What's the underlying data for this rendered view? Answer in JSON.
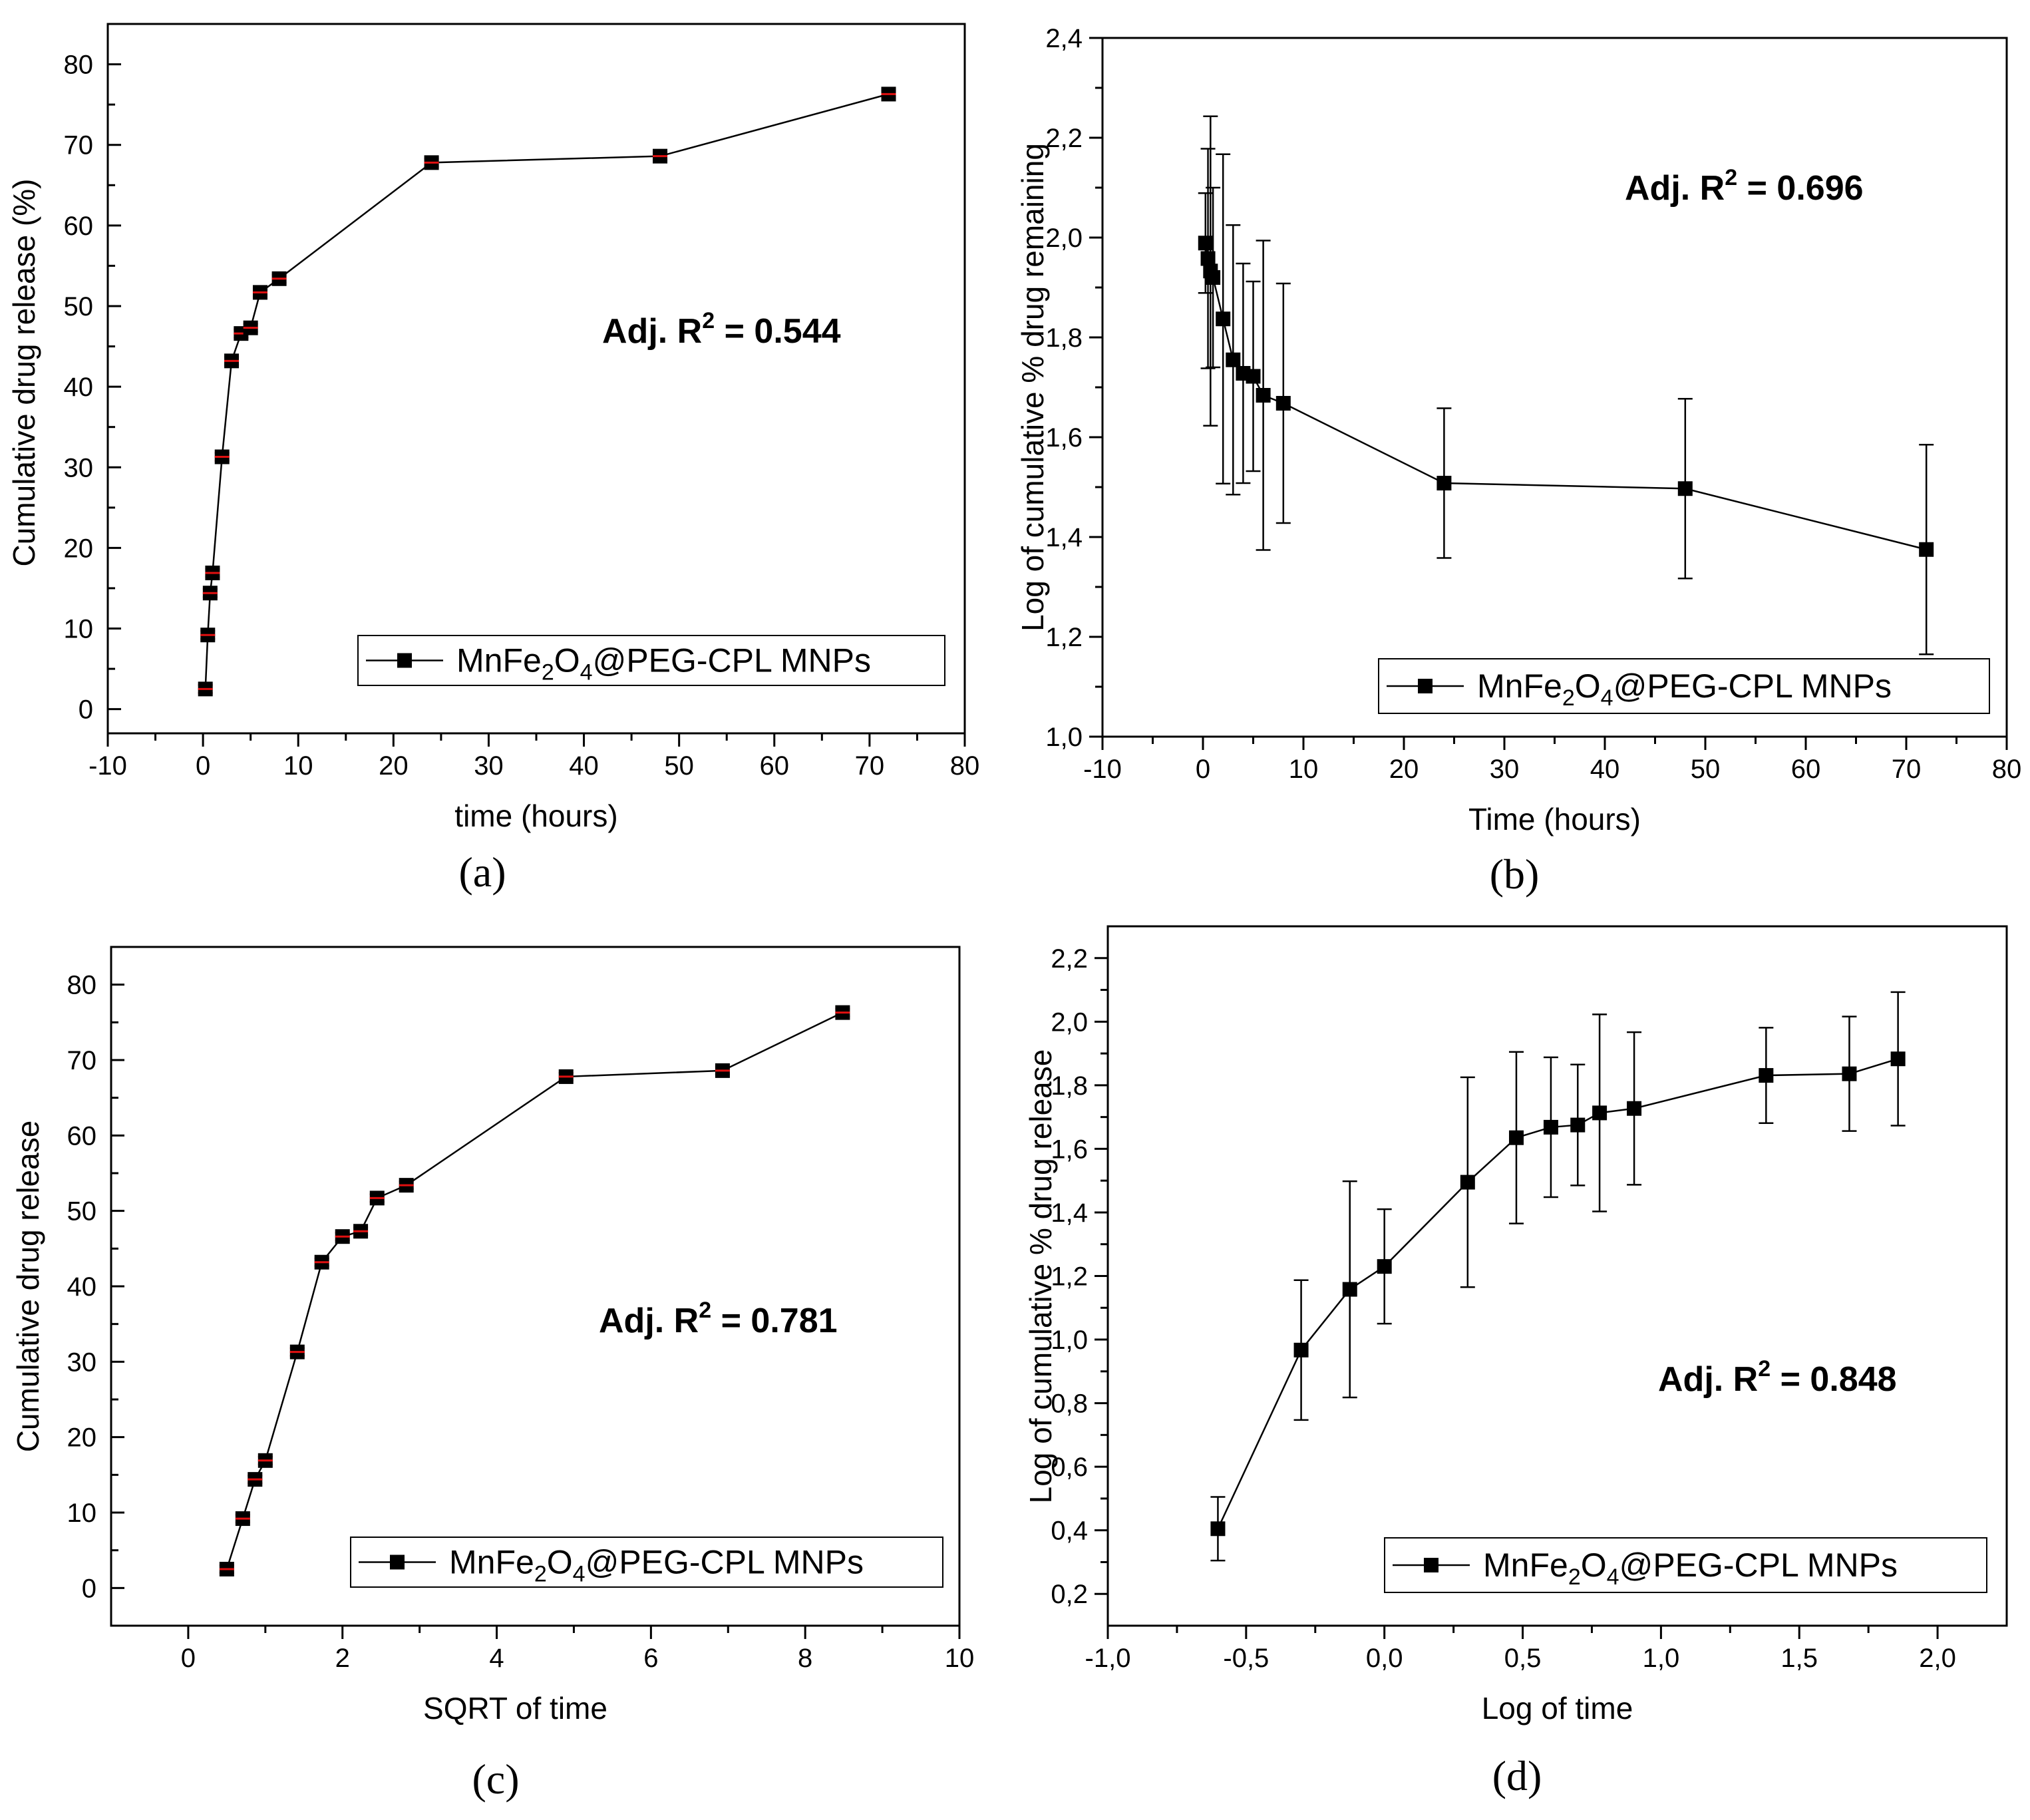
{
  "chart_data": [
    {
      "type": "line",
      "panel_label": "(a)",
      "title": "",
      "xlabel": "time (hours)",
      "ylabel": "Cumulative drug release (%)",
      "xlim": [
        -10,
        80
      ],
      "ylim": [
        -3,
        85
      ],
      "xticks": [
        -10,
        0,
        10,
        20,
        30,
        40,
        50,
        60,
        70,
        80
      ],
      "xtick_labels": [
        "-10",
        "0",
        "10",
        "20",
        "30",
        "40",
        "50",
        "60",
        "70",
        "80"
      ],
      "yticks": [
        0,
        10,
        20,
        30,
        40,
        50,
        60,
        70,
        80
      ],
      "ytick_labels": [
        "0",
        "10",
        "20",
        "30",
        "40",
        "50",
        "60",
        "70",
        "80"
      ],
      "annotation": {
        "prefix": "Adj. R",
        "sup": "2",
        "suffix": " = 0.544"
      },
      "legend": {
        "placement": "bottom-right",
        "name_parts": [
          "MnFe",
          "2",
          "O",
          "4",
          "@PEG-CPL MNPs"
        ]
      },
      "marker_error_color": "#e01010",
      "series": [
        {
          "name": "MnFe2O4@PEG-CPL MNPs",
          "x": [
            0.25,
            0.5,
            0.75,
            1,
            2,
            3,
            4,
            5,
            6,
            8,
            24,
            48,
            72
          ],
          "y": [
            2.5,
            9.2,
            14.4,
            16.9,
            31.3,
            43.2,
            46.6,
            47.3,
            51.7,
            53.4,
            67.8,
            68.6,
            76.3
          ],
          "err": [
            0.5,
            0.5,
            0.5,
            0.5,
            0.5,
            0.5,
            0.5,
            0.5,
            0.5,
            0.5,
            0.5,
            0.5,
            0.5
          ]
        }
      ]
    },
    {
      "type": "line",
      "panel_label": "(b)",
      "title": "",
      "xlabel": "Time (hours)",
      "ylabel": "Log of cumulative % drug remaining",
      "xlim": [
        -10,
        80
      ],
      "ylim": [
        1.0,
        2.4
      ],
      "xticks": [
        -10,
        0,
        10,
        20,
        30,
        40,
        50,
        60,
        70,
        80
      ],
      "xtick_labels": [
        "-10",
        "0",
        "10",
        "20",
        "30",
        "40",
        "50",
        "60",
        "70",
        "80"
      ],
      "yticks": [
        1.0,
        1.2,
        1.4,
        1.6,
        1.8,
        2.0,
        2.2,
        2.4
      ],
      "ytick_labels": [
        "1,0",
        "1,2",
        "1,4",
        "1,6",
        "1,8",
        "2,0",
        "2,2",
        "2,4"
      ],
      "annotation": {
        "prefix": "Adj. R",
        "sup": "2",
        "suffix": " = 0.696"
      },
      "legend": {
        "placement": "bottom-right",
        "name_parts": [
          "MnFe",
          "2",
          "O",
          "4",
          "@PEG-CPL MNPs"
        ]
      },
      "marker_error_color": "#000000",
      "series": [
        {
          "name": "MnFe2O4@PEG-CPL MNPs",
          "x": [
            0.25,
            0.5,
            0.75,
            1,
            2,
            3,
            4,
            5,
            6,
            8,
            24,
            48,
            72
          ],
          "y": [
            1.989,
            1.958,
            1.933,
            1.92,
            1.837,
            1.755,
            1.728,
            1.722,
            1.684,
            1.668,
            1.508,
            1.497,
            1.375
          ],
          "err": [
            0.1,
            0.22,
            0.31,
            0.18,
            0.33,
            0.27,
            0.22,
            0.19,
            0.31,
            0.24,
            0.15,
            0.18,
            0.21
          ]
        }
      ]
    },
    {
      "type": "line",
      "panel_label": "(c)",
      "title": "",
      "xlabel": "SQRT of time",
      "ylabel": "Cumulative drug release",
      "xlim": [
        -1,
        10
      ],
      "ylim": [
        -5,
        85
      ],
      "xticks": [
        0,
        2,
        4,
        6,
        8,
        10
      ],
      "xtick_labels": [
        "0",
        "2",
        "4",
        "6",
        "8",
        "10"
      ],
      "yticks": [
        0,
        10,
        20,
        30,
        40,
        50,
        60,
        70,
        80
      ],
      "ytick_labels": [
        "0",
        "10",
        "20",
        "30",
        "40",
        "50",
        "60",
        "70",
        "80"
      ],
      "annotation": {
        "prefix": "Adj. R",
        "sup": "2",
        "suffix": " = 0.781"
      },
      "legend": {
        "placement": "bottom-right",
        "name_parts": [
          "MnFe",
          "2",
          "O",
          "4",
          "@PEG-CPL MNPs"
        ]
      },
      "marker_error_color": "#e01010",
      "series": [
        {
          "name": "MnFe2O4@PEG-CPL MNPs",
          "x": [
            0.5,
            0.707,
            0.866,
            1.0,
            1.414,
            1.732,
            2.0,
            2.236,
            2.449,
            2.828,
            4.899,
            6.928,
            8.485
          ],
          "y": [
            2.5,
            9.2,
            14.4,
            16.9,
            31.3,
            43.2,
            46.6,
            47.3,
            51.7,
            53.4,
            67.8,
            68.6,
            76.3
          ],
          "err": [
            0.5,
            0.5,
            0.5,
            0.5,
            0.5,
            0.5,
            0.5,
            0.5,
            0.5,
            0.5,
            0.5,
            0.5,
            0.5
          ]
        }
      ]
    },
    {
      "type": "line",
      "panel_label": "(d)",
      "title": "",
      "xlabel": "Log of time",
      "ylabel": "Log of cumulative % drug release",
      "xlim": [
        -1.0,
        2.25
      ],
      "ylim": [
        0.1,
        2.3
      ],
      "xticks": [
        -1.0,
        -0.5,
        0.0,
        0.5,
        1.0,
        1.5,
        2.0
      ],
      "xtick_labels": [
        "-1,0",
        "-0,5",
        "0,0",
        "0,5",
        "1,0",
        "1,5",
        "2,0"
      ],
      "yticks": [
        0.2,
        0.4,
        0.6,
        0.8,
        1.0,
        1.2,
        1.4,
        1.6,
        1.8,
        2.0,
        2.2
      ],
      "ytick_labels": [
        "0,2",
        "0,4",
        "0,6",
        "0,8",
        "1,0",
        "1,2",
        "1,4",
        "1,6",
        "1,8",
        "2,0",
        "2,2"
      ],
      "annotation": {
        "prefix": "Adj. R",
        "sup": "2",
        "suffix": " = 0.848"
      },
      "legend": {
        "placement": "bottom-right",
        "name_parts": [
          "MnFe",
          "2",
          "O",
          "4",
          "@PEG-CPL MNPs"
        ]
      },
      "marker_error_color": "#000000",
      "series": [
        {
          "name": "MnFe2O4@PEG-CPL MNPs",
          "x": [
            -0.602,
            -0.301,
            -0.125,
            0.0,
            0.301,
            0.477,
            0.602,
            0.699,
            0.778,
            0.903,
            1.38,
            1.681,
            1.857
          ],
          "y": [
            0.405,
            0.967,
            1.158,
            1.23,
            1.495,
            1.635,
            1.668,
            1.675,
            1.713,
            1.727,
            1.831,
            1.836,
            1.883
          ],
          "err": [
            0.1,
            0.22,
            0.34,
            0.18,
            0.33,
            0.27,
            0.22,
            0.19,
            0.31,
            0.24,
            0.15,
            0.18,
            0.21
          ]
        }
      ]
    }
  ]
}
